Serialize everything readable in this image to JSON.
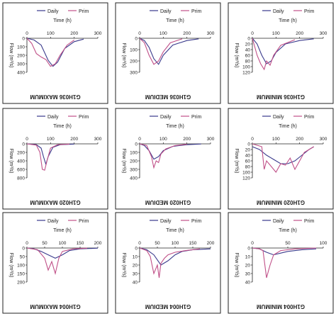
{
  "chart_data": [
    {
      "type": "line",
      "title": "G1H036 MAXIMUM",
      "xlabel": "Time (h)",
      "ylabel": "Flow (m³/s)",
      "xlim": [
        0,
        300
      ],
      "ylim": [
        0,
        400
      ],
      "xticks": [
        "0",
        "100",
        "200",
        "300"
      ],
      "yticks": [
        "0",
        "100",
        "200",
        "300",
        "400"
      ],
      "legend": "top",
      "series": [
        {
          "name": "Daily",
          "color": "#3a3a8c",
          "x": [
            0,
            30,
            60,
            90,
            110,
            130,
            160,
            200,
            240
          ],
          "y": [
            0,
            20,
            80,
            260,
            330,
            280,
            120,
            40,
            10
          ]
        },
        {
          "name": "Prim",
          "color": "#c05088",
          "x": [
            0,
            20,
            40,
            60,
            80,
            100,
            120,
            140,
            170,
            200
          ],
          "y": [
            0,
            60,
            180,
            220,
            250,
            330,
            300,
            200,
            80,
            20
          ]
        }
      ]
    },
    {
      "type": "line",
      "title": "G1H036 MEDIUM",
      "xlabel": "Time (h)",
      "ylabel": "Flow (m³/s)",
      "xlim": [
        0,
        300
      ],
      "ylim": [
        0,
        300
      ],
      "xticks": [
        "0",
        "100",
        "200",
        "300"
      ],
      "yticks": [
        "0",
        "100",
        "200",
        "300"
      ],
      "legend": "top",
      "series": [
        {
          "name": "Daily",
          "color": "#3a3a8c",
          "x": [
            0,
            20,
            40,
            60,
            80,
            100,
            140,
            200,
            250
          ],
          "y": [
            0,
            20,
            80,
            180,
            230,
            150,
            60,
            20,
            5
          ]
        },
        {
          "name": "Prim",
          "color": "#c05088",
          "x": [
            0,
            20,
            40,
            60,
            80,
            100,
            130,
            180
          ],
          "y": [
            0,
            40,
            150,
            230,
            200,
            120,
            40,
            5
          ]
        }
      ]
    },
    {
      "type": "line",
      "title": "G1H036 MINIMUM",
      "xlabel": "Time (h)",
      "ylabel": "Flow (m³/s)",
      "xlim": [
        0,
        300
      ],
      "ylim": [
        0,
        120
      ],
      "xticks": [
        "0",
        "100",
        "200",
        "300"
      ],
      "yticks": [
        "0",
        "20",
        "40",
        "60",
        "80",
        "100",
        "120"
      ],
      "legend": "top",
      "series": [
        {
          "name": "Daily",
          "color": "#3a3a8c",
          "x": [
            0,
            20,
            40,
            60,
            80,
            100,
            140,
            200,
            260
          ],
          "y": [
            0,
            20,
            60,
            90,
            80,
            50,
            20,
            8,
            2
          ]
        },
        {
          "name": "Prim",
          "color": "#c05088",
          "x": [
            0,
            20,
            35,
            50,
            60,
            75,
            90,
            120,
            180
          ],
          "y": [
            0,
            60,
            90,
            110,
            80,
            95,
            60,
            25,
            5
          ]
        }
      ]
    },
    {
      "type": "line",
      "title": "G1H020 MAXIMUM",
      "xlabel": "Time (h)",
      "ylabel": "Flow (m³/s)",
      "xlim": [
        0,
        300
      ],
      "ylim": [
        0,
        800
      ],
      "xticks": [
        "0",
        "100",
        "200",
        "300"
      ],
      "yticks": [
        "0",
        "200",
        "400",
        "600",
        "800"
      ],
      "legend": "top",
      "series": [
        {
          "name": "Daily",
          "color": "#3a3a8c",
          "x": [
            0,
            40,
            60,
            70,
            80,
            90,
            110,
            140,
            200
          ],
          "y": [
            0,
            20,
            100,
            300,
            480,
            300,
            80,
            20,
            5
          ]
        },
        {
          "name": "Prim",
          "color": "#c05088",
          "x": [
            0,
            40,
            55,
            65,
            75,
            85,
            100,
            130,
            180
          ],
          "y": [
            0,
            30,
            200,
            600,
            620,
            400,
            100,
            20,
            5
          ]
        }
      ]
    },
    {
      "type": "line",
      "title": "G1H020 MEDIUM",
      "xlabel": "Time (h)",
      "ylabel": "Flow (m³/s)",
      "xlim": [
        0,
        300
      ],
      "ylim": [
        0,
        400
      ],
      "xticks": [
        "0",
        "100",
        "200",
        "300"
      ],
      "yticks": [
        "0",
        "100",
        "200",
        "300",
        "400"
      ],
      "legend": "top",
      "series": [
        {
          "name": "Daily",
          "color": "#3a3a8c",
          "x": [
            0,
            20,
            40,
            60,
            80,
            100,
            140,
            200,
            260
          ],
          "y": [
            0,
            20,
            80,
            180,
            150,
            80,
            30,
            10,
            2
          ]
        },
        {
          "name": "Prim",
          "color": "#c05088",
          "x": [
            0,
            30,
            50,
            60,
            70,
            80,
            90,
            110,
            150,
            200
          ],
          "y": [
            0,
            20,
            150,
            280,
            200,
            220,
            120,
            60,
            20,
            5
          ]
        }
      ]
    },
    {
      "type": "line",
      "title": "G1H020 MINIMUM",
      "xlabel": "Time (h)",
      "ylabel": "Flow (m³/s)",
      "xlim": [
        0,
        300
      ],
      "ylim": [
        0,
        120
      ],
      "xticks": [
        "0",
        "100",
        "200",
        "300"
      ],
      "yticks": [
        "0",
        "20",
        "40",
        "60",
        "80",
        "100",
        "120"
      ],
      "legend": "top",
      "series": [
        {
          "name": "Daily",
          "color": "#3a3a8c",
          "x": [
            0,
            30,
            60,
            90,
            120,
            150,
            180,
            210,
            240,
            260
          ],
          "y": [
            10,
            20,
            40,
            55,
            70,
            70,
            60,
            40,
            20,
            10
          ]
        },
        {
          "name": "Prim",
          "color": "#c05088",
          "x": [
            0,
            20,
            40,
            50,
            60,
            80,
            100,
            120,
            140,
            160,
            180,
            200,
            220,
            240,
            260
          ],
          "y": [
            0,
            5,
            10,
            90,
            60,
            80,
            100,
            70,
            75,
            50,
            90,
            60,
            30,
            20,
            10
          ]
        }
      ]
    },
    {
      "type": "line",
      "title": "G1H004 MAXIMUM",
      "xlabel": "Time (h)",
      "ylabel": "Flow (m³/s)",
      "xlim": [
        0,
        200
      ],
      "ylim": [
        0,
        200
      ],
      "xticks": [
        "0",
        "50",
        "100",
        "150",
        "200"
      ],
      "yticks": [
        "0",
        "50",
        "100",
        "150",
        "200"
      ],
      "legend": "top",
      "series": [
        {
          "name": "Daily",
          "color": "#3a3a8c",
          "x": [
            0,
            20,
            40,
            60,
            80,
            100,
            120,
            150,
            200
          ],
          "y": [
            0,
            5,
            20,
            40,
            60,
            40,
            15,
            5,
            1
          ]
        },
        {
          "name": "Prim",
          "color": "#c05088",
          "x": [
            0,
            30,
            50,
            60,
            70,
            80,
            90,
            100,
            130,
            170
          ],
          "y": [
            0,
            10,
            60,
            130,
            80,
            150,
            60,
            20,
            5,
            1
          ]
        }
      ]
    },
    {
      "type": "line",
      "title": "G1H004 MEDIUM",
      "xlabel": "Time (h)",
      "ylabel": "Flow (m³/s)",
      "xlim": [
        0,
        200
      ],
      "ylim": [
        0,
        40
      ],
      "xticks": [
        "0",
        "50",
        "100",
        "150",
        "200"
      ],
      "yticks": [
        "0",
        "10",
        "20",
        "30",
        "40"
      ],
      "legend": "top",
      "series": [
        {
          "name": "Daily",
          "color": "#3a3a8c",
          "x": [
            0,
            20,
            40,
            60,
            80,
            100,
            120,
            150,
            200
          ],
          "y": [
            0,
            2,
            8,
            20,
            15,
            8,
            4,
            2,
            1
          ]
        },
        {
          "name": "Prim",
          "color": "#c05088",
          "x": [
            0,
            20,
            30,
            40,
            50,
            55,
            60,
            70,
            80,
            100,
            130,
            170
          ],
          "y": [
            0,
            3,
            10,
            30,
            20,
            35,
            18,
            12,
            8,
            5,
            3,
            1
          ]
        }
      ]
    },
    {
      "type": "line",
      "title": "G1H004 MINIMUM",
      "xlabel": "Time (h)",
      "ylabel": "Flow (m³/s)",
      "xlim": [
        0,
        100
      ],
      "ylim": [
        0,
        40
      ],
      "xticks": [
        "0",
        "50",
        "100"
      ],
      "yticks": [
        "0",
        "10",
        "20",
        "30",
        "40"
      ],
      "legend": "top",
      "series": [
        {
          "name": "Daily",
          "color": "#3a3a8c",
          "x": [
            0,
            10,
            20,
            30,
            40,
            50,
            70,
            90
          ],
          "y": [
            0,
            1,
            5,
            8,
            6,
            4,
            2,
            1
          ]
        },
        {
          "name": "Prim",
          "color": "#c05088",
          "x": [
            0,
            10,
            15,
            20,
            25,
            30,
            40,
            60,
            90
          ],
          "y": [
            0,
            1,
            3,
            35,
            20,
            8,
            3,
            1,
            0
          ]
        }
      ]
    }
  ]
}
